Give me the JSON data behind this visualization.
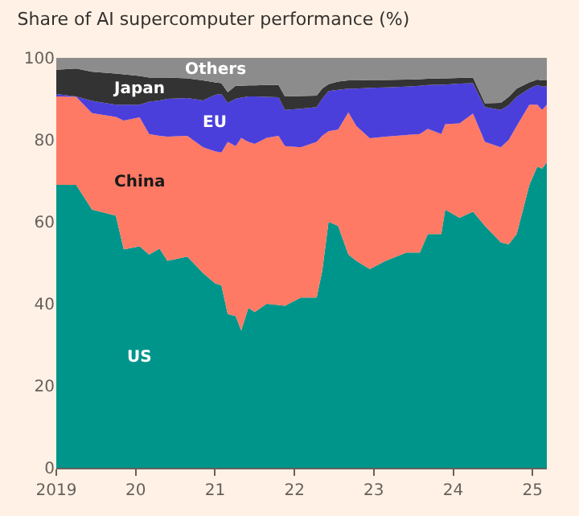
{
  "chart_data": {
    "type": "area",
    "stacked": true,
    "title": "Share of AI supercomputer performance (%)",
    "x": [
      2019.0,
      2019.25,
      2019.45,
      2019.75,
      2019.85,
      2020.05,
      2020.17,
      2020.3,
      2020.4,
      2020.65,
      2020.85,
      2021.0,
      2021.08,
      2021.16,
      2021.26,
      2021.33,
      2021.42,
      2021.5,
      2021.65,
      2021.8,
      2021.88,
      2022.08,
      2022.28,
      2022.35,
      2022.43,
      2022.55,
      2022.68,
      2022.78,
      2022.95,
      2023.15,
      2023.41,
      2023.58,
      2023.68,
      2023.85,
      2023.9,
      2024.08,
      2024.25,
      2024.4,
      2024.6,
      2024.7,
      2024.8,
      2024.96,
      2025.06,
      2025.12,
      2025.18
    ],
    "series": [
      {
        "name": "US",
        "color": "#00958a",
        "values": [
          69,
          69,
          63,
          61.5,
          53.3,
          54,
          52,
          53.5,
          50.5,
          51.5,
          47.5,
          45,
          44.5,
          37.5,
          37,
          33.5,
          39,
          38,
          40,
          39.7,
          39.5,
          41.5,
          41.5,
          48,
          60,
          59,
          52,
          50.5,
          48.5,
          50.5,
          52.5,
          52.5,
          57,
          57,
          63,
          61,
          62.5,
          59,
          55,
          54.5,
          57,
          69,
          73.5,
          73,
          74.5
        ]
      },
      {
        "name": "China",
        "color": "#ff7a65",
        "values": [
          21.6,
          21.5,
          23.5,
          24.1,
          31.4,
          31.5,
          29.4,
          27.5,
          30.3,
          29.5,
          30.7,
          32.2,
          32.4,
          42,
          41.5,
          47,
          40.5,
          41,
          40.5,
          41.3,
          39,
          36.7,
          38,
          33,
          22.1,
          23.5,
          34.7,
          32.9,
          31.9,
          30.3,
          28.7,
          28.9,
          25.7,
          24.4,
          20.8,
          23,
          23.9,
          20.5,
          23.2,
          25.5,
          26.4,
          19.6,
          15.1,
          14.3,
          14.1
        ]
      },
      {
        "name": "EU",
        "color": "#4b3fdb",
        "values": [
          0.6,
          0.1,
          3,
          3,
          3.9,
          3.1,
          7.9,
          8.6,
          9.2,
          9.2,
          11.4,
          13.8,
          14.3,
          9.5,
          11.5,
          9.8,
          11.1,
          11.6,
          10,
          9.4,
          8.8,
          9.4,
          8.5,
          9,
          9.8,
          9.7,
          5.8,
          9.1,
          12.3,
          12,
          11.8,
          11.8,
          10.7,
          12.1,
          9.7,
          9.7,
          7.4,
          8.5,
          9.1,
          8.5,
          7.1,
          3.9,
          4.8,
          5.7,
          4.5
        ]
      },
      {
        "name": "Japan",
        "color": "#333333",
        "values": [
          5.9,
          6.8,
          7.1,
          7.6,
          7.4,
          7,
          5.9,
          5.6,
          5.2,
          4.8,
          4.9,
          3,
          2.6,
          2.6,
          3.2,
          2.9,
          2.7,
          2.7,
          2.9,
          3,
          3.3,
          3.1,
          2.8,
          2.5,
          1.7,
          2,
          2,
          2,
          1.9,
          1.8,
          1.7,
          1.6,
          1.5,
          1.5,
          1.5,
          1.4,
          1.4,
          0.9,
          1.7,
          2,
          2,
          1.5,
          1.3,
          1.5,
          1.4
        ]
      },
      {
        "name": "Others",
        "color": "#8c8c8c",
        "values": [
          2.9,
          2.6,
          3.4,
          3.8,
          4,
          4.4,
          4.8,
          4.8,
          4.8,
          5,
          5.5,
          6,
          6.2,
          8.4,
          6.8,
          6.8,
          6.7,
          6.7,
          6.6,
          6.6,
          9.4,
          9.3,
          9.2,
          7.5,
          6.4,
          5.8,
          5.5,
          5.5,
          5.4,
          5.4,
          5.3,
          5.2,
          5.1,
          5,
          5,
          4.9,
          4.8,
          11.1,
          11,
          9.5,
          7.5,
          6,
          5.3,
          5.5,
          5.5
        ]
      }
    ],
    "xlim": [
      2019,
      2025.18
    ],
    "xticks": [
      2019,
      {
        "value": 2020,
        "label": "20"
      },
      {
        "value": 2021,
        "label": "21"
      },
      {
        "value": 2022,
        "label": "22"
      },
      {
        "value": 2023,
        "label": "23"
      },
      {
        "value": 2024,
        "label": "24"
      },
      {
        "value": 2025,
        "label": "25"
      }
    ],
    "ylim": [
      0,
      100
    ],
    "yticks": [
      0,
      20,
      40,
      60,
      80,
      100
    ],
    "grid": "y",
    "legend": false
  }
}
